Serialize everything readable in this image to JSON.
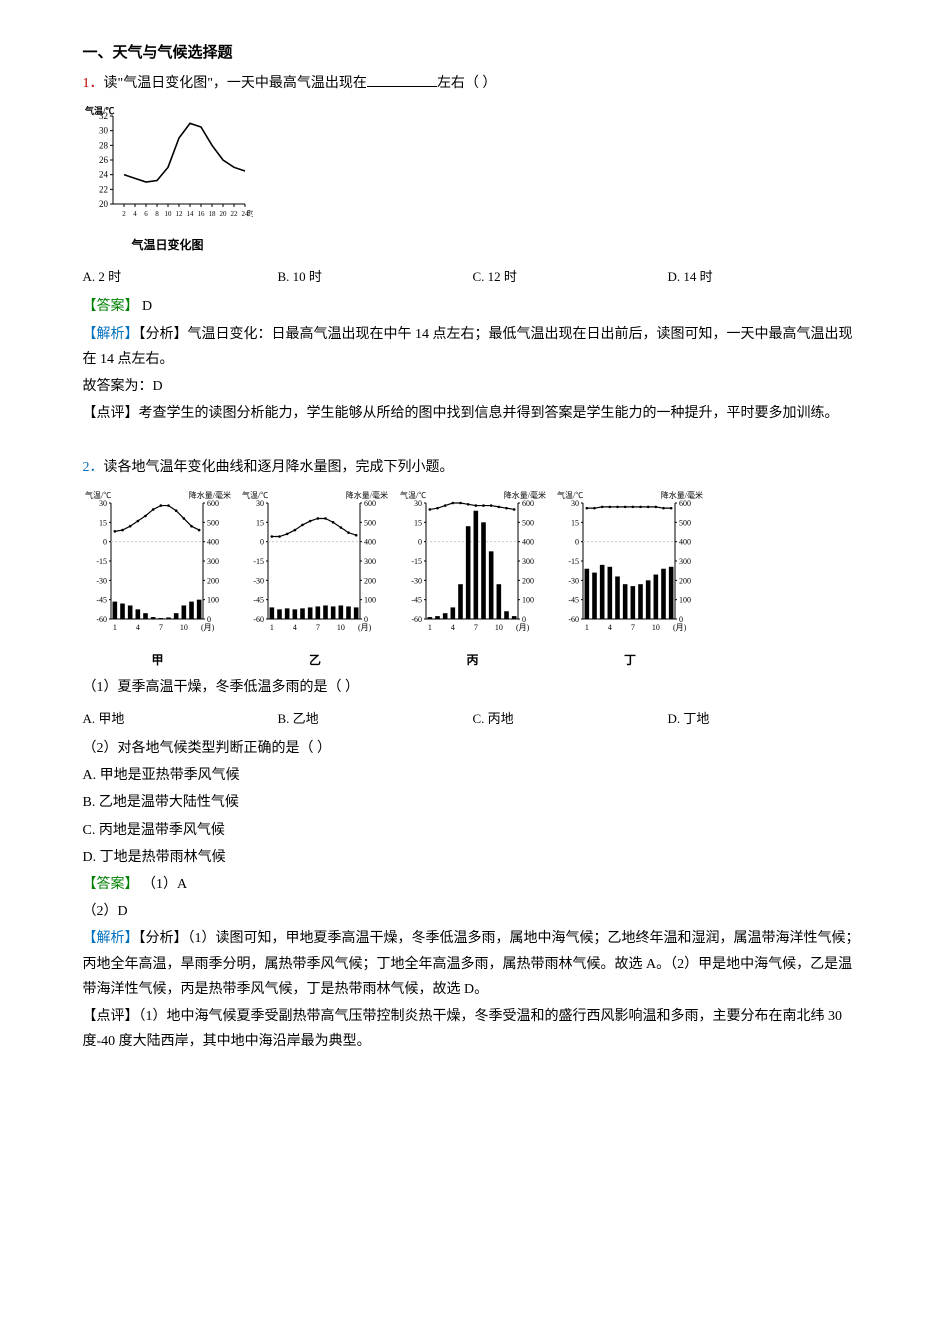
{
  "section_title": "一、天气与气候选择题",
  "q1": {
    "num": "1．",
    "stem_prefix": "读\"气温日变化图\"，一天中最高气温出现在",
    "stem_suffix": "左右（   ）",
    "options": {
      "A": "A. 2 时",
      "B": "B. 10 时",
      "C": "C. 12 时",
      "D": "D. 14 时"
    },
    "answer_label": "【答案】",
    "answer": "D",
    "analysis_label": "【解析】",
    "analysis_text": "【分析】气温日变化：日最高气温出现在中午 14 点左右；最低气温出现在日出前后，读图可知，一天中最高气温出现在 14 点左右。",
    "conclusion": "故答案为：D",
    "comment_label": "【点评】",
    "comment_text": "考查学生的读图分析能力，学生能够从所给的图中找到信息并得到答案是学生能力的一种提升，平时要多加训练。",
    "chart": {
      "type": "line",
      "x": [
        2,
        4,
        6,
        8,
        10,
        12,
        14,
        16,
        18,
        20,
        22,
        24
      ],
      "y": [
        24,
        23.5,
        23,
        23.2,
        25,
        29,
        31,
        30.5,
        28,
        26,
        25,
        24.5
      ],
      "ylim": [
        20,
        32
      ],
      "xlim": [
        0,
        24
      ],
      "yticks": [
        20,
        22,
        24,
        26,
        28,
        30,
        32
      ],
      "ylabel": "气温/℃",
      "xlabel_caption": "气温日变化图",
      "line_color": "#000000",
      "line_width": 1.6,
      "background_color": "#ffffff",
      "axis_color": "#000000",
      "font_size": 9
    }
  },
  "q2": {
    "num": "2．",
    "stem": "读各地气温年变化曲线和逐月降水量图，完成下列小题。",
    "sub1": {
      "stem": "（1）夏季高温干燥，冬季低温多雨的是（   ）",
      "options": {
        "A": "A. 甲地",
        "B": "B. 乙地",
        "C": "C. 丙地",
        "D": "D. 丁地"
      }
    },
    "sub2": {
      "stem": "（2）对各地气候类型判断正确的是（   ）",
      "A": "A. 甲地是亚热带季风气候",
      "B": "B. 乙地是温带大陆性气候",
      "C": "C. 丙地是温带季风气候",
      "D": "D. 丁地是热带雨林气候"
    },
    "answer_label": "【答案】",
    "answer1": "（1）A",
    "answer2": "（2）D",
    "analysis_label": "【解析】",
    "analysis_text": "【分析】（1）读图可知，甲地夏季高温干燥，冬季低温多雨，属地中海气候；乙地终年温和湿润，属温带海洋性气候；丙地全年高温，旱雨季分明，属热带季风气候；丁地全年高温多雨，属热带雨林气候。故选 A。（2）甲是地中海气候，乙是温带海洋性气候，丙是热带季风气候，丁是热带雨林气候，故选 D。",
    "comment_label": "【点评】",
    "comment_text": "（1）地中海气候夏季受副热带高气压带控制炎热干燥，冬季受温和的盛行西风影响温和多雨，主要分布在南北纬 30 度-40 度大陆西岸，其中地中海沿岸最为典型。",
    "charts": {
      "common": {
        "temp_ylim": [
          -60,
          30
        ],
        "temp_yticks": [
          -60,
          -45,
          -30,
          -15,
          0,
          15,
          30
        ],
        "precip_ylim": [
          0,
          600
        ],
        "precip_yticks": [
          0,
          100,
          200,
          300,
          400,
          500,
          600
        ],
        "xticks": [
          1,
          4,
          7,
          10
        ],
        "xlabel": "(月)",
        "temp_label": "气温/℃",
        "precip_label": "降水量/毫米",
        "line_color": "#000000",
        "bar_color": "#000000",
        "axis_color": "#000000",
        "grid_color": "#cccccc",
        "background_color": "#ffffff",
        "font_size": 8,
        "line_width": 1.2,
        "bar_width": 0.6
      },
      "jia": {
        "label": "甲",
        "temp": [
          8,
          9,
          12,
          16,
          20,
          25,
          28,
          28,
          24,
          18,
          12,
          9
        ],
        "precip": [
          90,
          80,
          70,
          50,
          30,
          10,
          5,
          8,
          30,
          70,
          90,
          100
        ]
      },
      "yi": {
        "label": "乙",
        "temp": [
          4,
          4,
          6,
          9,
          13,
          16,
          18,
          18,
          15,
          11,
          7,
          5
        ],
        "precip": [
          60,
          50,
          55,
          50,
          55,
          60,
          65,
          70,
          65,
          70,
          65,
          60
        ]
      },
      "bing": {
        "label": "丙",
        "temp": [
          25,
          26,
          28,
          30,
          30,
          29,
          28,
          28,
          28,
          27,
          26,
          25
        ],
        "precip": [
          10,
          15,
          30,
          60,
          180,
          480,
          560,
          500,
          350,
          180,
          40,
          15
        ]
      },
      "ding": {
        "label": "丁",
        "temp": [
          26,
          26,
          27,
          27,
          27,
          27,
          27,
          27,
          27,
          27,
          26,
          26
        ],
        "precip": [
          260,
          240,
          280,
          270,
          220,
          180,
          170,
          180,
          200,
          230,
          260,
          270
        ]
      }
    }
  }
}
